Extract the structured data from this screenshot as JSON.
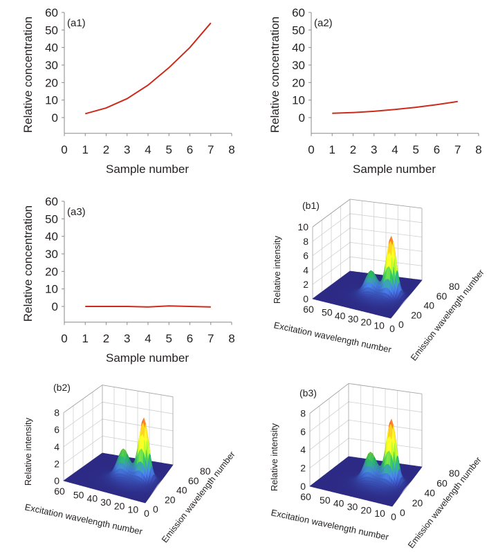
{
  "colors": {
    "line": "#cc2a1a",
    "axis": "#8a8a8a",
    "grid": "#d0d0d0",
    "surface_base": "#2d2b85"
  },
  "chart_data": [
    {
      "id": "a1",
      "type": "line",
      "panel_label": "(a1)",
      "xlabel": "Sample number",
      "ylabel": "Relative concentration",
      "x": [
        1,
        2,
        3,
        4,
        5,
        6,
        7
      ],
      "values": [
        2.2,
        5.5,
        10.8,
        18.5,
        28.5,
        40.0,
        54.0
      ],
      "xlim": [
        0,
        8
      ],
      "ylim": [
        -9,
        60
      ],
      "xticks": [
        0,
        1,
        2,
        3,
        4,
        5,
        6,
        7,
        8
      ],
      "yticks": [
        0,
        10,
        20,
        30,
        40,
        50,
        60
      ],
      "grid": false
    },
    {
      "id": "a2",
      "type": "line",
      "panel_label": "(a2)",
      "xlabel": "Sample number",
      "ylabel": "Relative concentration",
      "x": [
        1,
        2,
        3,
        4,
        5,
        6,
        7
      ],
      "values": [
        2.5,
        2.9,
        3.6,
        4.6,
        5.9,
        7.4,
        9.2
      ],
      "xlim": [
        0,
        8
      ],
      "ylim": [
        -9,
        60
      ],
      "xticks": [
        0,
        1,
        2,
        3,
        4,
        5,
        6,
        7,
        8
      ],
      "yticks": [
        0,
        10,
        20,
        30,
        40,
        50,
        60
      ],
      "grid": false
    },
    {
      "id": "a3",
      "type": "line",
      "panel_label": "(a3)",
      "xlabel": "Sample number",
      "ylabel": "Relative concentration",
      "x": [
        1,
        2,
        3,
        4,
        5,
        6,
        7
      ],
      "values": [
        0.0,
        0.0,
        0.0,
        -0.3,
        0.3,
        0.0,
        -0.3
      ],
      "xlim": [
        0,
        8
      ],
      "ylim": [
        -9,
        60
      ],
      "xticks": [
        0,
        1,
        2,
        3,
        4,
        5,
        6,
        7,
        8
      ],
      "yticks": [
        0,
        10,
        20,
        30,
        40,
        50,
        60
      ],
      "grid": false
    },
    {
      "id": "b1",
      "type": "surface",
      "panel_label": "(b1)",
      "xlabel": "Excitation wavelength number",
      "ylabel": "Emission wavelength number",
      "zlabel": "Relative intensity",
      "xlim": [
        0,
        60
      ],
      "ylim": [
        0,
        80
      ],
      "zlim": [
        0,
        10
      ],
      "xticks": [
        60,
        50,
        40,
        30,
        20,
        10,
        0
      ],
      "yticks": [
        0,
        20,
        40,
        60,
        80
      ],
      "zticks": [
        0,
        2,
        4,
        6,
        8,
        10
      ],
      "grid": true,
      "peaks": [
        {
          "excitation": 12,
          "emission": 40,
          "intensity": 7.8,
          "sigma_ex": 3.5,
          "sigma_em": 5
        },
        {
          "excitation": 27,
          "emission": 36,
          "intensity": 2.6,
          "sigma_ex": 4,
          "sigma_em": 5
        },
        {
          "excitation": 20,
          "emission": 32,
          "intensity": 1.0,
          "sigma_ex": 10,
          "sigma_em": 10
        }
      ]
    },
    {
      "id": "b2",
      "type": "surface",
      "panel_label": "(b2)",
      "xlabel": "Excitation wavelength number",
      "ylabel": "Emission wavelength number",
      "zlabel": "Relative intensity",
      "xlim": [
        0,
        60
      ],
      "ylim": [
        0,
        80
      ],
      "zlim": [
        0,
        8
      ],
      "xticks": [
        60,
        50,
        40,
        30,
        20,
        10,
        0
      ],
      "yticks": [
        0,
        20,
        40,
        60,
        80
      ],
      "zticks": [
        0,
        2,
        4,
        6,
        8
      ],
      "grid": true,
      "peaks": [
        {
          "excitation": 12,
          "emission": 40,
          "intensity": 6.8,
          "sigma_ex": 3.5,
          "sigma_em": 5
        },
        {
          "excitation": 27,
          "emission": 36,
          "intensity": 2.7,
          "sigma_ex": 4,
          "sigma_em": 5
        },
        {
          "excitation": 20,
          "emission": 32,
          "intensity": 1.0,
          "sigma_ex": 10,
          "sigma_em": 10
        }
      ]
    },
    {
      "id": "b3",
      "type": "surface",
      "panel_label": "(b3)",
      "xlabel": "Excitation wavelength number",
      "ylabel": "Emission wavelength number",
      "zlabel": "Relative intensity",
      "xlim": [
        0,
        60
      ],
      "ylim": [
        0,
        80
      ],
      "zlim": [
        0,
        8
      ],
      "xticks": [
        60,
        50,
        40,
        30,
        20,
        10,
        0
      ],
      "yticks": [
        0,
        20,
        40,
        60,
        80
      ],
      "zticks": [
        0,
        2,
        4,
        6,
        8
      ],
      "grid": true,
      "peaks": [
        {
          "excitation": 12,
          "emission": 40,
          "intensity": 6.5,
          "sigma_ex": 3.5,
          "sigma_em": 5
        },
        {
          "excitation": 27,
          "emission": 36,
          "intensity": 2.5,
          "sigma_ex": 4,
          "sigma_em": 5
        },
        {
          "excitation": 20,
          "emission": 32,
          "intensity": 1.0,
          "sigma_ex": 10,
          "sigma_em": 10
        }
      ]
    }
  ]
}
